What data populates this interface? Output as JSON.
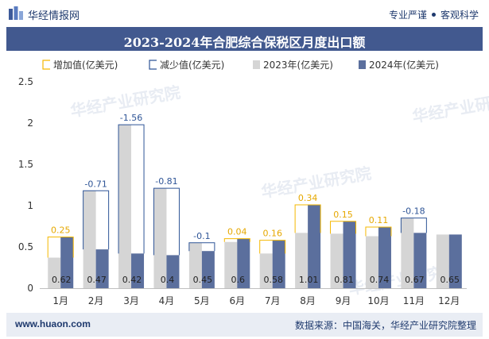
{
  "header": {
    "site_name": "华经情报网",
    "slogan_left": "专业严谨",
    "slogan_right": "客观科学"
  },
  "title": "2023-2024年合肥综合保税区月度出口额",
  "footer": {
    "url": "www.huaon.com",
    "source": "数据来源：中国海关，华经产业研究院整理"
  },
  "watermark": "华经产业研究院",
  "colors": {
    "bar_2023": "#d5d5d5",
    "bar_2024": "#5b6f9d",
    "increase": "#f5b800",
    "decrease": "#2f5597",
    "brand": "#42598f"
  },
  "chart_data": {
    "type": "bar",
    "categories": [
      "1月",
      "2月",
      "3月",
      "4月",
      "5月",
      "6月",
      "7月",
      "8月",
      "9月",
      "10月",
      "11月",
      "12月"
    ],
    "series": [
      {
        "name": "2023年(亿美元)",
        "values": [
          0.37,
          1.18,
          1.98,
          1.21,
          0.55,
          0.56,
          0.42,
          0.67,
          0.66,
          0.63,
          0.85,
          0.65
        ]
      },
      {
        "name": "2024年(亿美元)",
        "values": [
          0.62,
          0.47,
          0.42,
          0.4,
          0.45,
          0.6,
          0.58,
          1.01,
          0.81,
          0.74,
          0.67,
          0.65
        ]
      }
    ],
    "change_series": [
      {
        "name": "增加值(亿美元)",
        "values": [
          0.25,
          null,
          null,
          null,
          null,
          0.04,
          0.16,
          0.34,
          0.15,
          0.11,
          null,
          null
        ]
      },
      {
        "name": "减少值(亿美元)",
        "values": [
          null,
          -0.71,
          -1.56,
          -0.81,
          -0.1,
          null,
          null,
          null,
          null,
          null,
          -0.18,
          null
        ]
      }
    ],
    "data_labels_2024": [
      "0.62",
      "0.47",
      "0.42",
      "0.4",
      "0.45",
      "0.6",
      "0.58",
      "1.01",
      "0.81",
      "0.74",
      "0.67",
      "0.65"
    ],
    "change_labels": [
      "0.25",
      "-0.71",
      "-1.56",
      "-0.81",
      "-0.1",
      "0.04",
      "0.16",
      "0.34",
      "0.15",
      "0.11",
      "-0.18",
      ""
    ],
    "y_ticks": [
      "0",
      "0.5",
      "1",
      "1.5",
      "2",
      "2.5"
    ],
    "ylim": [
      0,
      2.5
    ],
    "legend_position": "top",
    "grid": false
  }
}
